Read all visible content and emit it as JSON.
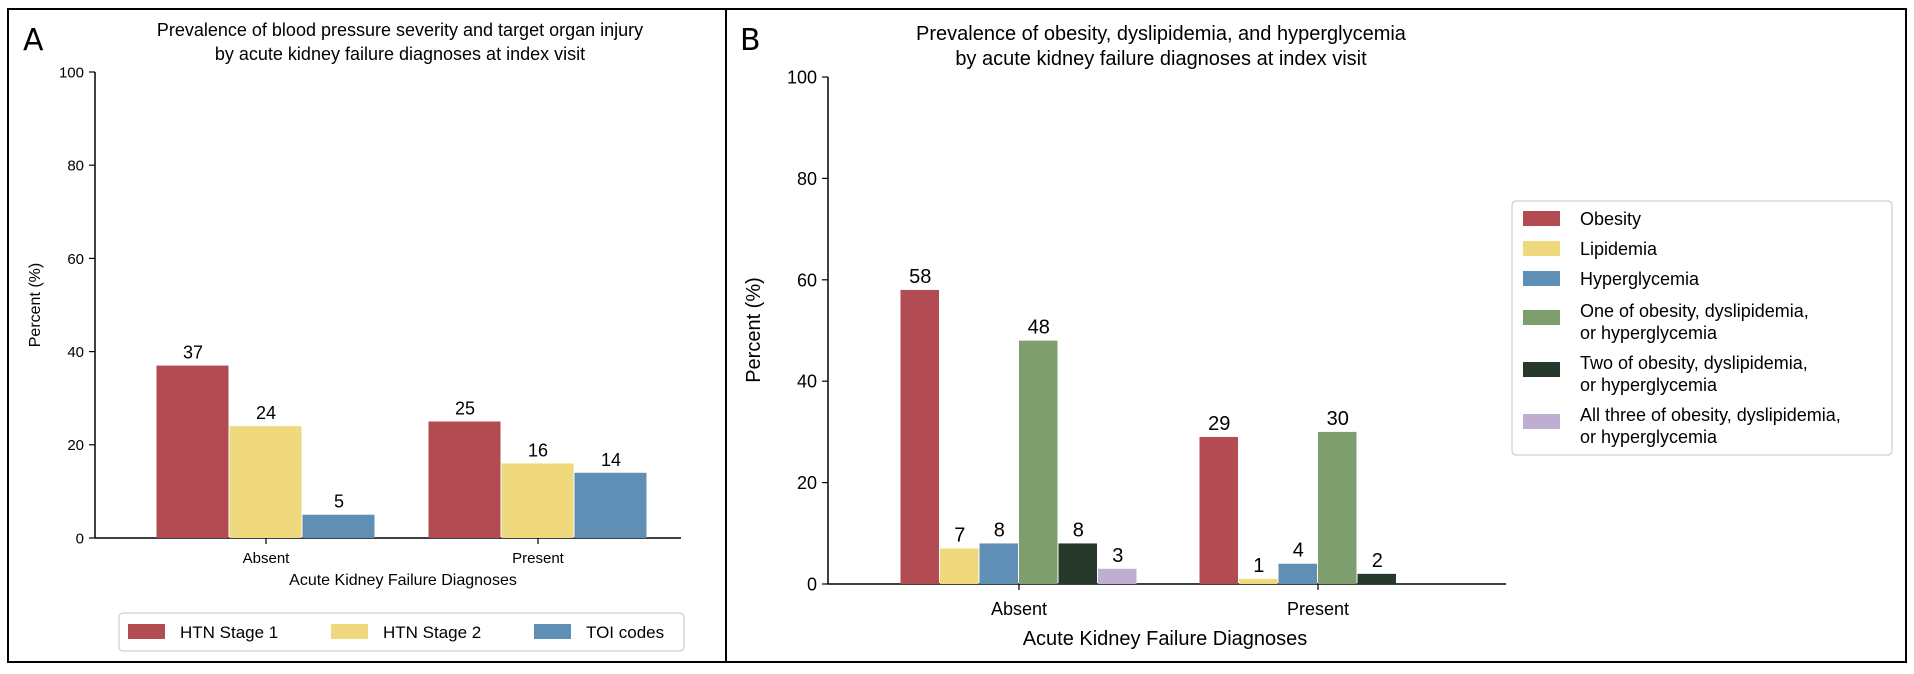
{
  "figure": {
    "panels": [
      {
        "letter": "A",
        "title_lines": [
          "Prevalence of blood pressure severity and target organ injury",
          "by acute kidney failure diagnoses at index visit"
        ]
      },
      {
        "letter": "B",
        "title_lines": [
          "Prevalence of obesity, dyslipidemia, and hyperglycemia",
          "by acute kidney failure diagnoses at index visit"
        ]
      }
    ]
  },
  "chart_data": [
    {
      "type": "bar",
      "title": "Prevalence of blood pressure severity and target organ injury by acute kidney failure diagnoses at index visit",
      "xlabel": "Acute Kidney Failure Diagnoses",
      "ylabel": "Percent (%)",
      "ylim": [
        0,
        100
      ],
      "yticks": [
        "0",
        "20",
        "40",
        "60",
        "80",
        "100"
      ],
      "categories": [
        "Absent",
        "Present"
      ],
      "legend_position": "bottom",
      "grid": false,
      "series": [
        {
          "name": "HTN Stage 1",
          "color": "#b34b52",
          "values": [
            37,
            25
          ],
          "labels": [
            "37",
            "25"
          ]
        },
        {
          "name": "HTN Stage 2",
          "color": "#f0d97c",
          "values": [
            24,
            16
          ],
          "labels": [
            "24",
            "16"
          ]
        },
        {
          "name": "TOI codes",
          "color": "#5f8fb4",
          "values": [
            5,
            14
          ],
          "labels": [
            "5",
            "14"
          ]
        }
      ]
    },
    {
      "type": "bar",
      "title": "Prevalence of obesity, dyslipidemia, and hyperglycemia by acute kidney failure diagnoses at index visit",
      "xlabel": "Acute Kidney Failure Diagnoses",
      "ylabel": "Percent (%)",
      "ylim": [
        0,
        100
      ],
      "yticks": [
        "0",
        "20",
        "40",
        "60",
        "80",
        "100"
      ],
      "categories": [
        "Absent",
        "Present"
      ],
      "legend_position": "right",
      "grid": false,
      "series": [
        {
          "name": "Obesity",
          "color": "#b34b52",
          "values": [
            58,
            29
          ],
          "labels": [
            "58",
            "29"
          ]
        },
        {
          "name": "Lipidemia",
          "color": "#f0d97c",
          "values": [
            7,
            1
          ],
          "labels": [
            "7",
            "1"
          ]
        },
        {
          "name": "Hyperglycemia",
          "color": "#5f8fb4",
          "values": [
            8,
            4
          ],
          "labels": [
            "8",
            "4"
          ]
        },
        {
          "name": "One of obesity, dyslipidemia, or hyperglycemia",
          "legend_lines": [
            "One of obesity, dyslipidemia,",
            "or hyperglycemia"
          ],
          "color": "#7f9e6e",
          "values": [
            48,
            30
          ],
          "labels": [
            "48",
            "30"
          ]
        },
        {
          "name": "Two of obesity, dyslipidemia, or hyperglycemia",
          "legend_lines": [
            "Two of obesity, dyslipidemia,",
            "or hyperglycemia"
          ],
          "color": "#26392a",
          "values": [
            8,
            2
          ],
          "labels": [
            "8",
            "2"
          ]
        },
        {
          "name": "All three of obesity, dyslipidemia, or hyperglycemia",
          "legend_lines": [
            "All three of obesity, dyslipidemia,",
            "or hyperglycemia"
          ],
          "color": "#c0aed2",
          "values": [
            3,
            null
          ],
          "labels": [
            "3",
            ""
          ]
        }
      ]
    }
  ]
}
